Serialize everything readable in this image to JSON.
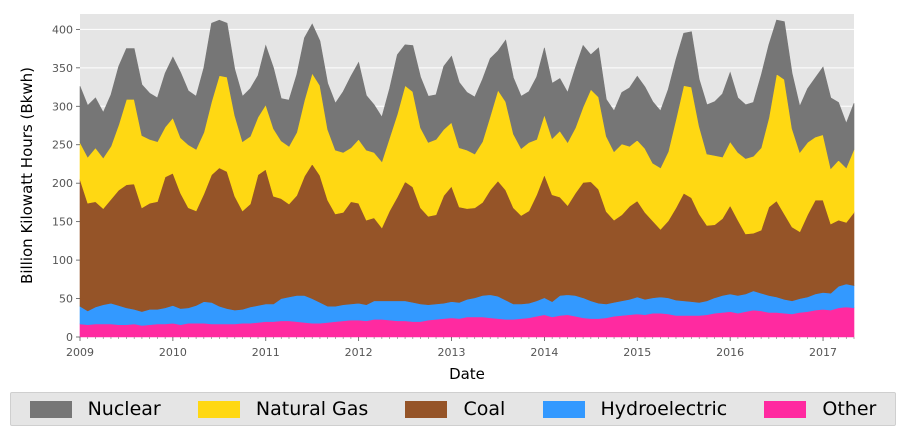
{
  "chart_data": {
    "type": "area",
    "stacked": true,
    "xlabel": "Date",
    "ylabel": "Billion Kilowatt Hours (Bkwh)",
    "ylim": [
      0,
      420
    ],
    "yticks": [
      0,
      50,
      100,
      150,
      200,
      250,
      300,
      350,
      400
    ],
    "xlim": [
      "2009-01",
      "2017-05"
    ],
    "xticks": [
      "2009",
      "2010",
      "2011",
      "2012",
      "2013",
      "2014",
      "2015",
      "2016",
      "2017"
    ],
    "grid": true,
    "legend_position": "bottom",
    "x": [
      "2009-01",
      "2009-02",
      "2009-03",
      "2009-04",
      "2009-05",
      "2009-06",
      "2009-07",
      "2009-08",
      "2009-09",
      "2009-10",
      "2009-11",
      "2009-12",
      "2010-01",
      "2010-02",
      "2010-03",
      "2010-04",
      "2010-05",
      "2010-06",
      "2010-07",
      "2010-08",
      "2010-09",
      "2010-10",
      "2010-11",
      "2010-12",
      "2011-01",
      "2011-02",
      "2011-03",
      "2011-04",
      "2011-05",
      "2011-06",
      "2011-07",
      "2011-08",
      "2011-09",
      "2011-10",
      "2011-11",
      "2011-12",
      "2012-01",
      "2012-02",
      "2012-03",
      "2012-04",
      "2012-05",
      "2012-06",
      "2012-07",
      "2012-08",
      "2012-09",
      "2012-10",
      "2012-11",
      "2012-12",
      "2013-01",
      "2013-02",
      "2013-03",
      "2013-04",
      "2013-05",
      "2013-06",
      "2013-07",
      "2013-08",
      "2013-09",
      "2013-10",
      "2013-11",
      "2013-12",
      "2014-01",
      "2014-02",
      "2014-03",
      "2014-04",
      "2014-05",
      "2014-06",
      "2014-07",
      "2014-08",
      "2014-09",
      "2014-10",
      "2014-11",
      "2014-12",
      "2015-01",
      "2015-02",
      "2015-03",
      "2015-04",
      "2015-05",
      "2015-06",
      "2015-07",
      "2015-08",
      "2015-09",
      "2015-10",
      "2015-11",
      "2015-12",
      "2016-01",
      "2016-02",
      "2016-03",
      "2016-04",
      "2016-05",
      "2016-06",
      "2016-07",
      "2016-08",
      "2016-09",
      "2016-10",
      "2016-11",
      "2016-12",
      "2017-01",
      "2017-02",
      "2017-03",
      "2017-04",
      "2017-05"
    ],
    "series": [
      {
        "name": "Other",
        "color": "#ff2aa0",
        "values": [
          17,
          16,
          17,
          17,
          17,
          16,
          16,
          17,
          15,
          16,
          17,
          17,
          18,
          16,
          18,
          18,
          18,
          17,
          17,
          17,
          17,
          18,
          18,
          19,
          20,
          20,
          21,
          21,
          20,
          19,
          18,
          18,
          19,
          20,
          21,
          22,
          22,
          21,
          23,
          23,
          22,
          21,
          21,
          20,
          20,
          22,
          23,
          24,
          25,
          24,
          26,
          26,
          26,
          25,
          24,
          23,
          23,
          24,
          25,
          27,
          29,
          26,
          28,
          29,
          27,
          25,
          24,
          24,
          25,
          27,
          28,
          29,
          30,
          29,
          31,
          31,
          30,
          28,
          28,
          28,
          28,
          29,
          31,
          32,
          33,
          31,
          33,
          35,
          34,
          32,
          32,
          31,
          30,
          32,
          33,
          35,
          36,
          35,
          38,
          39,
          38
        ]
      },
      {
        "name": "Hydroelectric",
        "color": "#3399ff",
        "values": [
          23,
          18,
          22,
          25,
          27,
          25,
          22,
          19,
          18,
          20,
          19,
          21,
          23,
          21,
          20,
          23,
          28,
          28,
          23,
          20,
          18,
          18,
          21,
          22,
          23,
          23,
          29,
          31,
          34,
          35,
          32,
          27,
          21,
          20,
          21,
          21,
          22,
          21,
          24,
          24,
          25,
          26,
          26,
          25,
          23,
          20,
          20,
          20,
          21,
          21,
          23,
          25,
          28,
          30,
          29,
          25,
          20,
          19,
          19,
          20,
          22,
          20,
          26,
          26,
          27,
          26,
          23,
          20,
          18,
          18,
          19,
          20,
          22,
          20,
          20,
          21,
          21,
          20,
          19,
          18,
          17,
          18,
          20,
          22,
          23,
          23,
          23,
          25,
          23,
          22,
          20,
          18,
          17,
          18,
          19,
          21,
          22,
          22,
          28,
          30,
          29
        ]
      },
      {
        "name": "Coal",
        "color": "#955428",
        "values": [
          165,
          140,
          137,
          125,
          135,
          150,
          160,
          163,
          135,
          138,
          140,
          170,
          172,
          150,
          130,
          123,
          140,
          166,
          180,
          178,
          148,
          128,
          134,
          170,
          175,
          140,
          130,
          121,
          130,
          155,
          175,
          165,
          138,
          120,
          120,
          133,
          130,
          110,
          108,
          95,
          117,
          135,
          155,
          150,
          125,
          115,
          116,
          140,
          150,
          124,
          118,
          117,
          121,
          136,
          150,
          143,
          125,
          115,
          120,
          138,
          160,
          139,
          128,
          116,
          133,
          150,
          155,
          148,
          120,
          107,
          112,
          121,
          125,
          113,
          100,
          88,
          100,
          120,
          140,
          135,
          115,
          98,
          95,
          100,
          115,
          98,
          78,
          75,
          82,
          115,
          125,
          111,
          96,
          87,
          107,
          122,
          120,
          90,
          86,
          80,
          95
        ]
      },
      {
        "name": "Natural Gas",
        "color": "#ffd813",
        "values": [
          48,
          60,
          70,
          66,
          69,
          85,
          111,
          110,
          94,
          83,
          78,
          65,
          72,
          72,
          82,
          80,
          80,
          95,
          120,
          123,
          105,
          90,
          88,
          75,
          84,
          88,
          75,
          75,
          82,
          99,
          118,
          117,
          92,
          83,
          78,
          70,
          83,
          91,
          85,
          86,
          95,
          108,
          125,
          124,
          104,
          96,
          98,
          86,
          83,
          77,
          76,
          70,
          79,
          96,
          118,
          115,
          96,
          87,
          89,
          72,
          78,
          73,
          86,
          82,
          85,
          98,
          120,
          120,
          98,
          89,
          92,
          78,
          79,
          83,
          75,
          80,
          90,
          115,
          140,
          144,
          114,
          93,
          90,
          80,
          83,
          88,
          98,
          100,
          107,
          116,
          165,
          175,
          128,
          103,
          94,
          82,
          85,
          72,
          78,
          71,
          82
        ]
      },
      {
        "name": "Nuclear",
        "color": "#767676",
        "values": [
          73,
          67,
          65,
          59,
          67,
          76,
          66,
          66,
          66,
          60,
          57,
          70,
          79,
          85,
          70,
          69,
          84,
          102,
          72,
          70,
          60,
          59,
          62,
          54,
          77,
          79,
          55,
          60,
          75,
          81,
          64,
          58,
          60,
          61,
          79,
          93,
          100,
          71,
          62,
          58,
          64,
          77,
          53,
          60,
          66,
          60,
          58,
          82,
          86,
          85,
          75,
          74,
          81,
          75,
          51,
          80,
          73,
          68,
          66,
          81,
          87,
          72,
          68,
          65,
          78,
          80,
          45,
          64,
          48,
          53,
          67,
          76,
          83,
          80,
          80,
          74,
          81,
          78,
          68,
          72,
          61,
          64,
          70,
          82,
          90,
          71,
          70,
          70,
          94,
          95,
          70,
          75,
          72,
          60,
          70,
          77,
          88,
          92,
          75,
          58,
          60
        ]
      }
    ]
  },
  "legend": {
    "items": [
      {
        "label": "Nuclear",
        "color": "#767676"
      },
      {
        "label": "Natural Gas",
        "color": "#ffd813"
      },
      {
        "label": "Coal",
        "color": "#955428"
      },
      {
        "label": "Hydroelectric",
        "color": "#3399ff"
      },
      {
        "label": "Other",
        "color": "#ff2aa0"
      }
    ]
  }
}
